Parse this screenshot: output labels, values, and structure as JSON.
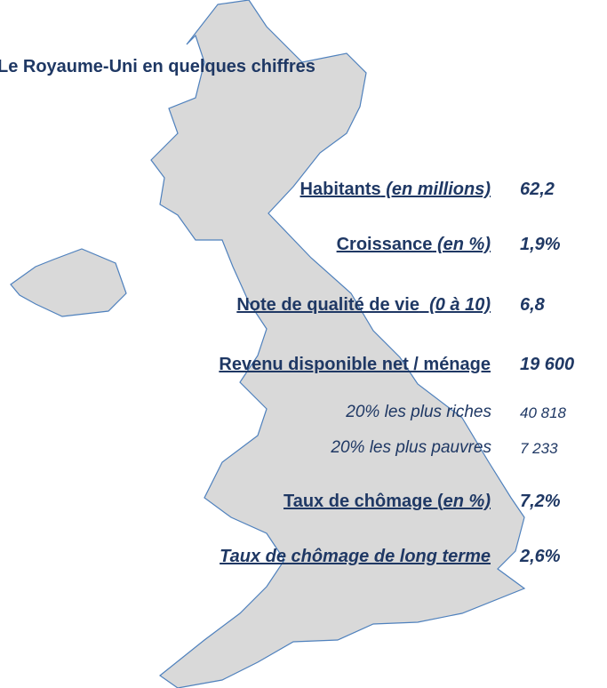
{
  "title": "Le Royaume-Uni en quelques chiffres",
  "rows": [
    {
      "label": "Habitants",
      "note": " (en millions)",
      "value": "62,2"
    },
    {
      "label": "Croissance",
      "note": " (en %)",
      "value": "1,9%"
    },
    {
      "label": "Note de qualité de vie",
      "note": "  (0 à 10)",
      "value": "6,8"
    },
    {
      "label": "Revenu disponible net / ménage",
      "value": "19 600"
    },
    {
      "label": "20% les plus riches",
      "value": "40 818"
    },
    {
      "label": "20% les plus pauvres",
      "value": "7 233"
    },
    {
      "label": "Taux de chômage (",
      "note": "en %)",
      "value": "7,2%"
    },
    {
      "label": "Taux de chômage de long terme",
      "value": "2,6%"
    }
  ]
}
